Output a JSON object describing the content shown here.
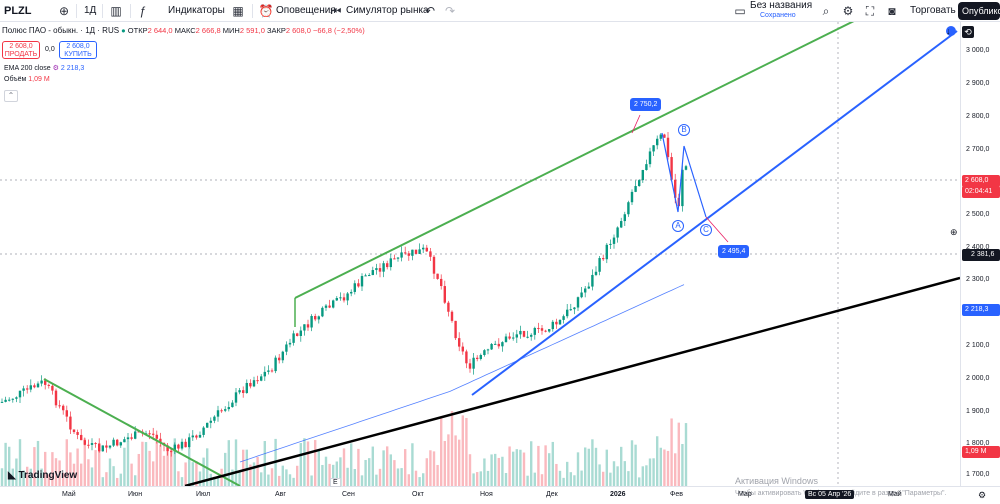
{
  "toolbar": {
    "symbol": "PLZL",
    "interval": "1Д",
    "indicators_label": "Индикаторы",
    "alerts_label": "Оповещения",
    "replay_label": "Симулятор рынка",
    "layout_name": "Без названия",
    "layout_status": "Сохранено",
    "trade_label": "Торговать",
    "publish_label": "Опубликовать"
  },
  "legend": {
    "title": "Полюс ПАО - обыкн. · 1Д · RUS",
    "open_label": "ОТКР",
    "open": "2 644,0",
    "high_label": "МАКС",
    "high": "2 666,8",
    "low_label": "МИН",
    "low": "2 591,0",
    "close_label": "ЗАКР",
    "close": "2 608,0",
    "change": "−66,8 (−2,50%)",
    "sell_price": "2 608,0",
    "sell_label": "ПРОДАТЬ",
    "spread": "0,0",
    "buy_price": "2 608,0",
    "buy_label": "КУПИТЬ",
    "ema_label": "EMA 200 close",
    "ema_value": "2 218,3",
    "volume_label": "Объём",
    "volume_value": "1,09 M"
  },
  "annotations": {
    "top_callout": "2 750,2",
    "target_callout": "2 495,4",
    "wave_a": "A",
    "wave_b": "B",
    "wave_c": "C"
  },
  "price_scale": {
    "labels": [
      "3 000,0",
      "2 900,0",
      "2 800,0",
      "2 700,0",
      "2 500,0",
      "2 400,0",
      "2 300,0",
      "2 100,0",
      "2 000,0",
      "1 900,0",
      "1 800,0",
      "1 700,0"
    ],
    "last_price": "2 608,0",
    "countdown": "02:04:41",
    "crosshair_price": "2 381,6",
    "ema_tag": "2 218,3",
    "volume_tag": "1,09 M"
  },
  "time_axis": {
    "labels": [
      "Май",
      "Июн",
      "Июл",
      "Авг",
      "Сен",
      "Окт",
      "Ноя",
      "Дек",
      "2026",
      "Фев",
      "Мар",
      "Май"
    ],
    "crosshair_date": "Вс 05 Апр '26"
  },
  "watermark": {
    "line1": "Активация Windows",
    "line2": "Чтобы активировать Windows, перейдите в раздел \"Параметры\"."
  },
  "brand": "TradingView",
  "colors": {
    "up": "#089981",
    "down": "#f23645",
    "green_channel": "#4caf50",
    "blue_trend": "#2962ff",
    "black_trend": "#000000"
  }
}
